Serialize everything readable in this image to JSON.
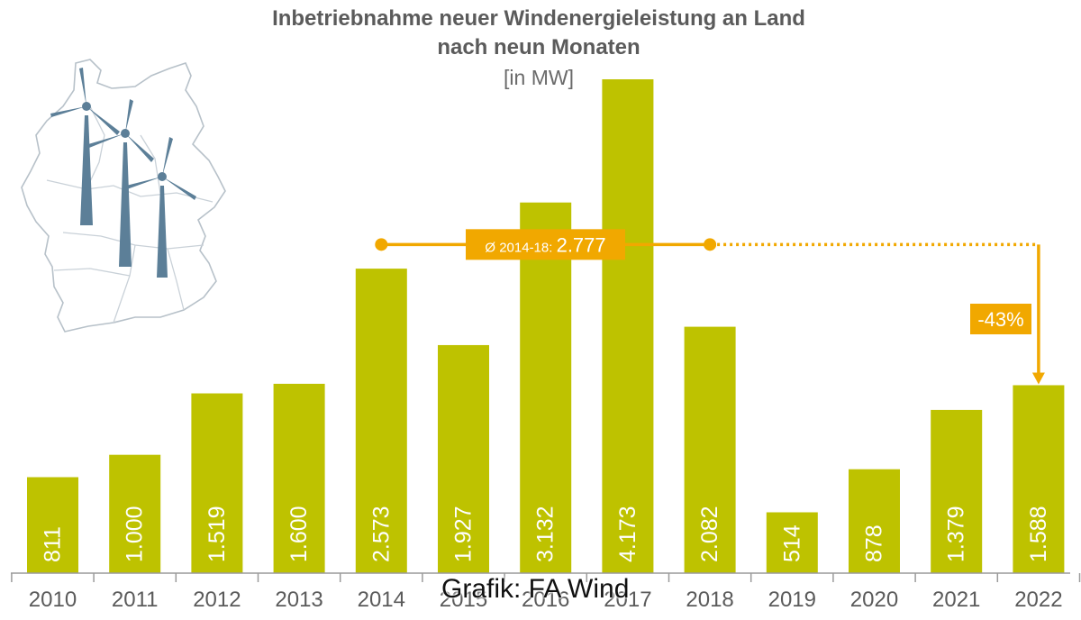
{
  "chart_data": {
    "type": "bar",
    "title": "Inbetriebnahme neuer Windenergieleistung an Land",
    "subtitle": "nach neun Monaten",
    "unit": "[in MW]",
    "categories": [
      "2010",
      "2011",
      "2012",
      "2013",
      "2014",
      "2015",
      "2016",
      "2017",
      "2018",
      "2019",
      "2020",
      "2021",
      "2022"
    ],
    "values": [
      811,
      1000,
      1519,
      1600,
      2573,
      1927,
      3132,
      4173,
      2082,
      514,
      878,
      1379,
      1588
    ],
    "value_labels": [
      "811",
      "1.000",
      "1.519",
      "1.600",
      "2.573",
      "1.927",
      "3.132",
      "4.173",
      "2.082",
      "514",
      "878",
      "1.379",
      "1.588"
    ],
    "ylim": [
      0,
      4173
    ],
    "grid": false,
    "colors": {
      "bar": "#bec200",
      "annotation": "#f1a800",
      "bar_label": "#ffffff",
      "text": "#5b5b5b"
    },
    "average": {
      "label_prefix": "Ø 2014-18:",
      "value_label": "2.777",
      "value": 2777,
      "from": "2014",
      "to": "2018",
      "extends_to": "2022"
    },
    "change": {
      "label": "-43%",
      "target": "2022"
    }
  },
  "credit": "Grafik: FA Wind",
  "illustration": {
    "icon": "germany-map-wind-turbines-icon",
    "turbine_color": "#5c7f98",
    "map_line_color": "#b7c1c9"
  }
}
